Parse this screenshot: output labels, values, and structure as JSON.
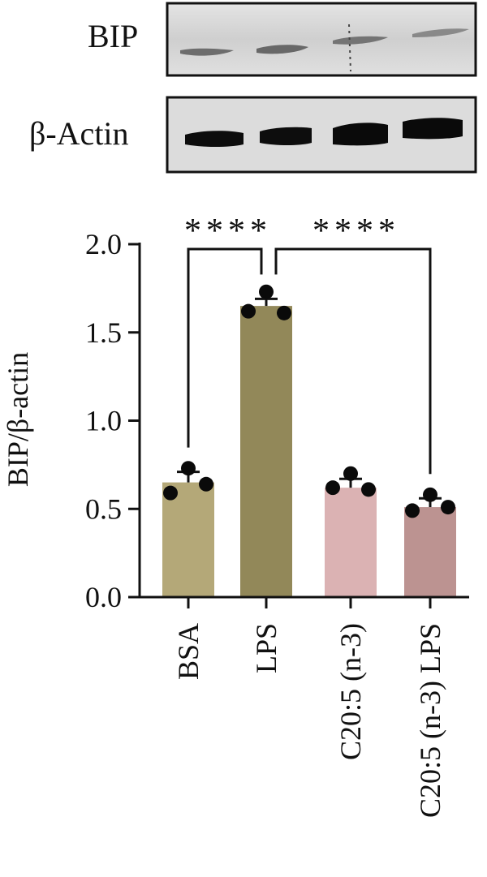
{
  "blot": {
    "bands": [
      "BIP",
      "β-Actin"
    ],
    "lanes": 4
  },
  "chart_data": {
    "type": "bar",
    "title": "",
    "xlabel": "",
    "ylabel": "BIP/β-actin",
    "ylim": [
      0,
      2.0
    ],
    "yticks": [
      "0.0",
      "0.5",
      "1.0",
      "1.5",
      "2.0"
    ],
    "grid": false,
    "categories": [
      "BSA",
      "LPS",
      "C20:5 (n-3)",
      "C20:5 (n-3) LPS"
    ],
    "values": [
      0.65,
      1.65,
      0.62,
      0.51
    ],
    "errors": [
      0.06,
      0.04,
      0.05,
      0.05
    ],
    "points": [
      [
        0.73,
        0.59,
        0.64
      ],
      [
        1.73,
        1.62,
        1.61
      ],
      [
        0.7,
        0.62,
        0.61
      ],
      [
        0.58,
        0.49,
        0.51
      ]
    ],
    "colors": [
      "#b4a878",
      "#928859",
      "#dbb2b3",
      "#bc9391"
    ],
    "significance": [
      {
        "from": "BSA",
        "to": "LPS",
        "label": "****"
      },
      {
        "from": "LPS",
        "to": "C20:5 (n-3) LPS",
        "label": "****"
      }
    ]
  }
}
